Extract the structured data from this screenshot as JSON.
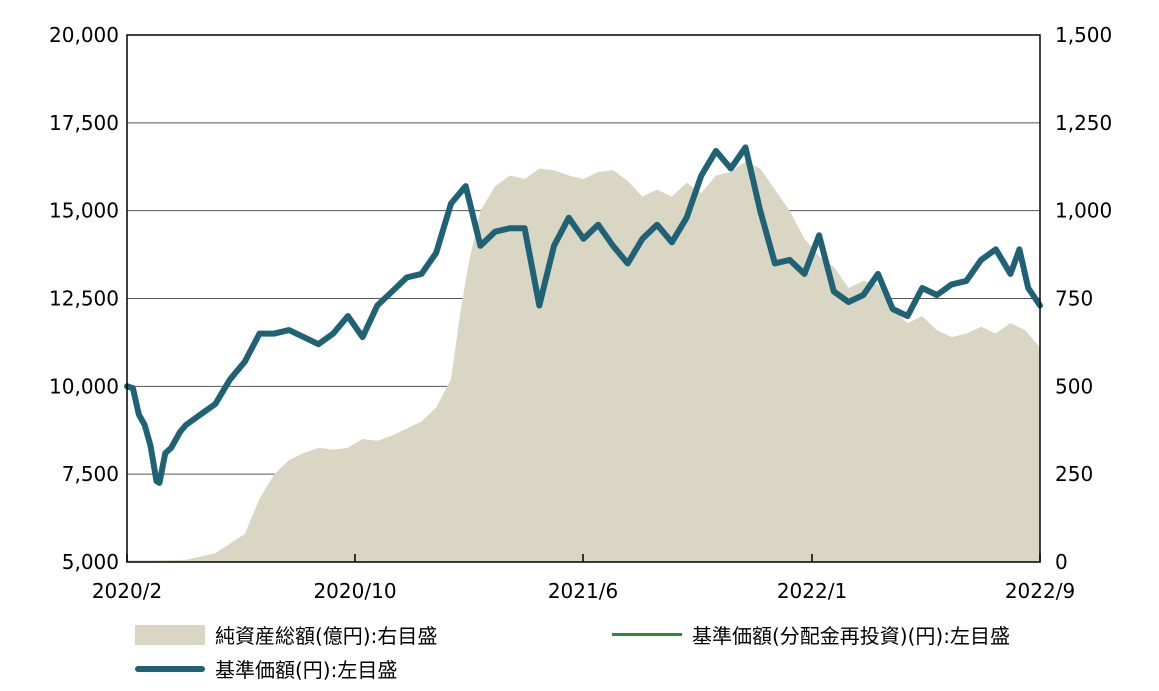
{
  "chart_data": {
    "type": "line",
    "left_axis": {
      "ticks": [
        "20,000",
        "17,500",
        "15,000",
        "12,500",
        "10,000",
        "7,500",
        "5,000"
      ],
      "range": [
        5000,
        20000
      ]
    },
    "right_axis": {
      "ticks": [
        "1,500",
        "1,250",
        "1,000",
        "750",
        "500",
        "250",
        "0"
      ],
      "range": [
        0,
        1500
      ]
    },
    "x_ticks": [
      "2020/2",
      "2020/10",
      "2021/6",
      "2022/1",
      "2022/9"
    ],
    "grid": true,
    "legend_position": "bottom",
    "series": [
      {
        "name": "純資産総額(億円):右目盛",
        "kind": "area",
        "axis": "right",
        "color": "#d9d6c3",
        "x": [
          0,
          0.5,
          1,
          2,
          3,
          4,
          4.5,
          5,
          5.5,
          6,
          6.5,
          7,
          7.5,
          8,
          8.5,
          9,
          9.5,
          10,
          10.5,
          11,
          11.3,
          11.6,
          12,
          12.5,
          13,
          13.5,
          14,
          14.5,
          15,
          15.5,
          16,
          16.5,
          17,
          17.5,
          18,
          18.5,
          19,
          19.5,
          20,
          20.5,
          21,
          21.5,
          22,
          22.5,
          23,
          23.5,
          24,
          24.5,
          25,
          25.5,
          26,
          26.5,
          27,
          27.5,
          28,
          28.5,
          29,
          29.5,
          30,
          30.5,
          31
        ],
        "values": [
          5,
          5,
          5,
          6,
          25,
          80,
          180,
          250,
          290,
          310,
          325,
          320,
          325,
          350,
          345,
          360,
          380,
          400,
          440,
          520,
          700,
          850,
          1000,
          1070,
          1100,
          1090,
          1120,
          1115,
          1100,
          1090,
          1110,
          1115,
          1085,
          1040,
          1060,
          1040,
          1080,
          1050,
          1100,
          1110,
          1140,
          1120,
          1060,
          1000,
          920,
          870,
          840,
          780,
          800,
          790,
          720,
          680,
          700,
          660,
          640,
          650,
          670,
          650,
          680,
          660,
          610
        ]
      },
      {
        "name": "基準価額(分配金再投資)(円):左目盛",
        "kind": "line",
        "axis": "left",
        "color": "#2d8a3a",
        "x": [],
        "values": []
      },
      {
        "name": "基準価額(円):左目盛",
        "kind": "line",
        "axis": "left",
        "color": "#1f6276",
        "x": [
          0,
          0.2,
          0.4,
          0.6,
          0.8,
          1,
          1.1,
          1.3,
          1.5,
          1.8,
          2,
          2.5,
          3,
          3.5,
          4,
          4.5,
          5,
          5.5,
          6,
          6.5,
          7,
          7.5,
          8,
          8.5,
          9,
          9.5,
          10,
          10.5,
          11,
          11.5,
          12,
          12.5,
          13,
          13.5,
          14,
          14.5,
          15,
          15.5,
          16,
          16.5,
          17,
          17.5,
          18,
          18.5,
          19,
          19.5,
          20,
          20.5,
          21,
          21.5,
          22,
          22.5,
          23,
          23.5,
          24,
          24.5,
          25,
          25.5,
          26,
          26.5,
          27,
          27.5,
          28,
          28.5,
          29,
          29.5,
          30,
          30.3,
          30.6,
          31
        ],
        "values": [
          10000,
          9950,
          9200,
          8900,
          8300,
          7300,
          7250,
          8100,
          8250,
          8700,
          8900,
          9200,
          9500,
          10200,
          10700,
          11500,
          11500,
          11600,
          11400,
          11200,
          11500,
          12000,
          11400,
          12300,
          12700,
          13100,
          13200,
          13800,
          15200,
          15700,
          14000,
          14400,
          14500,
          14500,
          12300,
          14000,
          14800,
          14200,
          14600,
          14000,
          13500,
          14200,
          14600,
          14100,
          14800,
          16000,
          16700,
          16200,
          16800,
          15000,
          13500,
          13600,
          13200,
          14300,
          12700,
          12400,
          12600,
          13200,
          12200,
          12000,
          12800,
          12600,
          12900,
          13000,
          13600,
          13900,
          13200,
          13900,
          12800,
          12300
        ]
      }
    ]
  }
}
